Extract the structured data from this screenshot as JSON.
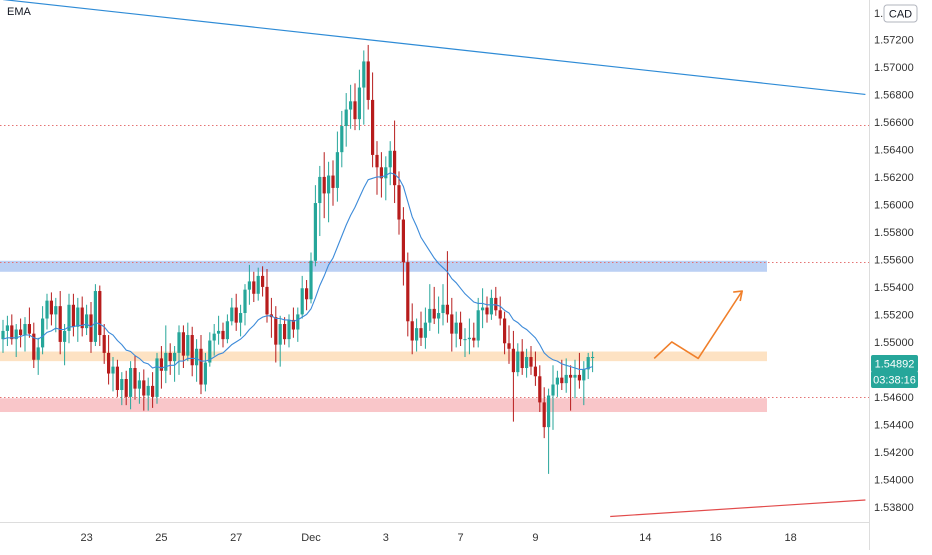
{
  "chart_data": {
    "type": "candlestick",
    "indicator_label": "EMA",
    "currency": "CAD",
    "price_badge": "1.54892",
    "countdown_badge": "03:38:16",
    "y_axis": {
      "ylim": [
        1.5369,
        1.57465
      ],
      "ticks": [
        "1.53800",
        "1.54000",
        "1.54200",
        "1.54400",
        "1.54600",
        "1.54800",
        "1.55000",
        "1.55200",
        "1.55400",
        "1.55600",
        "1.55800",
        "1.56000",
        "1.56200",
        "1.56400",
        "1.56600",
        "1.56800",
        "1.57000",
        "1.57200"
      ],
      "top_partial_tick": "1."
    },
    "x_axis": {
      "ticks": [
        {
          "label": "23",
          "index": 19
        },
        {
          "label": "25",
          "index": 36
        },
        {
          "label": "27",
          "index": 53
        },
        {
          "label": "Dec",
          "index": 70
        },
        {
          "label": "3",
          "index": 87
        },
        {
          "label": "7",
          "index": 104
        },
        {
          "label": "9",
          "index": 121
        },
        {
          "label": "14",
          "index": 146
        },
        {
          "label": "16",
          "index": 162
        },
        {
          "label": "18",
          "index": 179
        }
      ]
    },
    "candles": [
      [
        1.5502,
        1.5516,
        1.5492,
        1.5508
      ],
      [
        1.5508,
        1.5519,
        1.5497,
        1.5512
      ],
      [
        1.5512,
        1.552,
        1.5498,
        1.5502
      ],
      [
        1.5502,
        1.5513,
        1.5489,
        1.5509
      ],
      [
        1.5509,
        1.5517,
        1.5496,
        1.5505
      ],
      [
        1.5505,
        1.5518,
        1.5493,
        1.5513
      ],
      [
        1.5513,
        1.5525,
        1.5503,
        1.5506
      ],
      [
        1.5506,
        1.5514,
        1.5481,
        1.5487
      ],
      [
        1.5487,
        1.5503,
        1.5476,
        1.5496
      ],
      [
        1.5496,
        1.5526,
        1.5491,
        1.5517
      ],
      [
        1.5517,
        1.5535,
        1.5509,
        1.553
      ],
      [
        1.553,
        1.5536,
        1.5512,
        1.552
      ],
      [
        1.552,
        1.5532,
        1.5507,
        1.5526
      ],
      [
        1.5526,
        1.5537,
        1.5491,
        1.55
      ],
      [
        1.55,
        1.5513,
        1.5483,
        1.5508
      ],
      [
        1.5508,
        1.5535,
        1.5499,
        1.5527
      ],
      [
        1.5527,
        1.5535,
        1.5504,
        1.5511
      ],
      [
        1.5511,
        1.5532,
        1.55,
        1.5525
      ],
      [
        1.5525,
        1.5533,
        1.5504,
        1.551
      ],
      [
        1.551,
        1.5527,
        1.5505,
        1.552
      ],
      [
        1.552,
        1.5529,
        1.5492,
        1.55
      ],
      [
        1.55,
        1.5542,
        1.5497,
        1.5537
      ],
      [
        1.5537,
        1.5541,
        1.5497,
        1.5505
      ],
      [
        1.5505,
        1.5513,
        1.5484,
        1.5492
      ],
      [
        1.5492,
        1.5505,
        1.5469,
        1.5477
      ],
      [
        1.5477,
        1.5489,
        1.5464,
        1.5482
      ],
      [
        1.5482,
        1.5487,
        1.546,
        1.5465
      ],
      [
        1.5465,
        1.5478,
        1.5454,
        1.5473
      ],
      [
        1.5473,
        1.5479,
        1.5454,
        1.546
      ],
      [
        1.546,
        1.5486,
        1.5451,
        1.5481
      ],
      [
        1.5481,
        1.549,
        1.5458,
        1.5466
      ],
      [
        1.5466,
        1.5478,
        1.5455,
        1.5472
      ],
      [
        1.5472,
        1.548,
        1.545,
        1.5461
      ],
      [
        1.5461,
        1.5474,
        1.545,
        1.5468
      ],
      [
        1.5468,
        1.5478,
        1.5452,
        1.546
      ],
      [
        1.546,
        1.5492,
        1.5455,
        1.5488
      ],
      [
        1.5488,
        1.5497,
        1.5466,
        1.5479
      ],
      [
        1.5479,
        1.5512,
        1.547,
        1.5492
      ],
      [
        1.5492,
        1.5499,
        1.5476,
        1.5486
      ],
      [
        1.5486,
        1.5497,
        1.5471,
        1.5492
      ],
      [
        1.5492,
        1.5512,
        1.5476,
        1.5507
      ],
      [
        1.5507,
        1.5512,
        1.5481,
        1.549
      ],
      [
        1.549,
        1.5514,
        1.5486,
        1.5505
      ],
      [
        1.5505,
        1.5511,
        1.5475,
        1.5483
      ],
      [
        1.5483,
        1.5502,
        1.5471,
        1.5495
      ],
      [
        1.5495,
        1.5505,
        1.5462,
        1.5469
      ],
      [
        1.5469,
        1.5492,
        1.5464,
        1.5485
      ],
      [
        1.5485,
        1.5507,
        1.5482,
        1.5501
      ],
      [
        1.5501,
        1.5513,
        1.549,
        1.5506
      ],
      [
        1.5506,
        1.5519,
        1.5498,
        1.5508
      ],
      [
        1.5508,
        1.5514,
        1.5496,
        1.5502
      ],
      [
        1.5502,
        1.552,
        1.5499,
        1.5515
      ],
      [
        1.5515,
        1.5532,
        1.5512,
        1.5525
      ],
      [
        1.5525,
        1.5535,
        1.5508,
        1.5514
      ],
      [
        1.5514,
        1.5527,
        1.5504,
        1.5521
      ],
      [
        1.5521,
        1.5542,
        1.5512,
        1.5538
      ],
      [
        1.5538,
        1.5556,
        1.5527,
        1.5544
      ],
      [
        1.5544,
        1.5551,
        1.5529,
        1.5535
      ],
      [
        1.5535,
        1.5554,
        1.553,
        1.5548
      ],
      [
        1.5548,
        1.5555,
        1.5533,
        1.554
      ],
      [
        1.554,
        1.5553,
        1.5514,
        1.552
      ],
      [
        1.552,
        1.5532,
        1.5503,
        1.5518
      ],
      [
        1.5518,
        1.5526,
        1.5485,
        1.5498
      ],
      [
        1.5498,
        1.5519,
        1.5482,
        1.5513
      ],
      [
        1.5513,
        1.5518,
        1.5498,
        1.5502
      ],
      [
        1.5502,
        1.552,
        1.5496,
        1.5516
      ],
      [
        1.5516,
        1.5525,
        1.5503,
        1.5509
      ],
      [
        1.5509,
        1.5525,
        1.55,
        1.552
      ],
      [
        1.552,
        1.5548,
        1.5517,
        1.5539
      ],
      [
        1.5539,
        1.5545,
        1.5523,
        1.5531
      ],
      [
        1.5531,
        1.5565,
        1.5528,
        1.5559
      ],
      [
        1.5559,
        1.5614,
        1.5555,
        1.5601
      ],
      [
        1.5601,
        1.5628,
        1.5577,
        1.562
      ],
      [
        1.562,
        1.5638,
        1.559,
        1.5608
      ],
      [
        1.5608,
        1.5631,
        1.5587,
        1.5621
      ],
      [
        1.5621,
        1.5632,
        1.5599,
        1.5612
      ],
      [
        1.5612,
        1.5653,
        1.5602,
        1.5638
      ],
      [
        1.5638,
        1.5668,
        1.5627,
        1.5657
      ],
      [
        1.5657,
        1.5681,
        1.5642,
        1.5669
      ],
      [
        1.5669,
        1.5687,
        1.5655,
        1.5675
      ],
      [
        1.5675,
        1.5688,
        1.5654,
        1.5662
      ],
      [
        1.5662,
        1.5698,
        1.5654,
        1.5685
      ],
      [
        1.5685,
        1.5712,
        1.5658,
        1.5704
      ],
      [
        1.5704,
        1.5716,
        1.5669,
        1.5676
      ],
      [
        1.5676,
        1.5696,
        1.5627,
        1.5636
      ],
      [
        1.5636,
        1.5646,
        1.5607,
        1.5627
      ],
      [
        1.5627,
        1.5638,
        1.5605,
        1.5619
      ],
      [
        1.5619,
        1.5635,
        1.5603,
        1.5627
      ],
      [
        1.5627,
        1.5646,
        1.5614,
        1.5639
      ],
      [
        1.5639,
        1.5661,
        1.5601,
        1.5614
      ],
      [
        1.5614,
        1.5624,
        1.5578,
        1.5589
      ],
      [
        1.5589,
        1.5598,
        1.5541,
        1.5558
      ],
      [
        1.5558,
        1.5565,
        1.5504,
        1.5515
      ],
      [
        1.5515,
        1.5528,
        1.5491,
        1.5501
      ],
      [
        1.5501,
        1.5517,
        1.5493,
        1.551
      ],
      [
        1.551,
        1.5522,
        1.5497,
        1.5503
      ],
      [
        1.5503,
        1.5525,
        1.5495,
        1.5514
      ],
      [
        1.5514,
        1.5542,
        1.5508,
        1.5524
      ],
      [
        1.5524,
        1.554,
        1.5513,
        1.5517
      ],
      [
        1.5517,
        1.5533,
        1.5506,
        1.5521
      ],
      [
        1.5521,
        1.5542,
        1.5512,
        1.5527
      ],
      [
        1.5527,
        1.5566,
        1.5514,
        1.552
      ],
      [
        1.552,
        1.5532,
        1.5493,
        1.5506
      ],
      [
        1.5506,
        1.5522,
        1.5496,
        1.5514
      ],
      [
        1.5514,
        1.5522,
        1.5497,
        1.5502
      ],
      [
        1.5502,
        1.551,
        1.5489,
        1.5502
      ],
      [
        1.5502,
        1.5517,
        1.5491,
        1.5503
      ],
      [
        1.5503,
        1.5514,
        1.5496,
        1.5501
      ],
      [
        1.5501,
        1.5532,
        1.5496,
        1.5523
      ],
      [
        1.5523,
        1.5539,
        1.551,
        1.5525
      ],
      [
        1.5525,
        1.5533,
        1.5514,
        1.552
      ],
      [
        1.552,
        1.5538,
        1.5516,
        1.5532
      ],
      [
        1.5532,
        1.554,
        1.5519,
        1.5523
      ],
      [
        1.5523,
        1.5533,
        1.5512,
        1.5517
      ],
      [
        1.5517,
        1.5522,
        1.5491,
        1.5499
      ],
      [
        1.5499,
        1.5512,
        1.5484,
        1.5495
      ],
      [
        1.5495,
        1.5508,
        1.5442,
        1.5478
      ],
      [
        1.5478,
        1.5499,
        1.5475,
        1.5493
      ],
      [
        1.5493,
        1.5502,
        1.5476,
        1.5481
      ],
      [
        1.5481,
        1.5495,
        1.5474,
        1.5489
      ],
      [
        1.5489,
        1.5497,
        1.5476,
        1.5482
      ],
      [
        1.5482,
        1.5493,
        1.5468,
        1.5475
      ],
      [
        1.5475,
        1.5483,
        1.5449,
        1.5456
      ],
      [
        1.5456,
        1.5467,
        1.543,
        1.5438
      ],
      [
        1.5438,
        1.5466,
        1.5404,
        1.5461
      ],
      [
        1.5461,
        1.5483,
        1.5436,
        1.5469
      ],
      [
        1.5469,
        1.5479,
        1.546,
        1.5474
      ],
      [
        1.5474,
        1.5487,
        1.5465,
        1.547
      ],
      [
        1.547,
        1.5488,
        1.5463,
        1.5476
      ],
      [
        1.5476,
        1.5483,
        1.545,
        1.5474
      ],
      [
        1.5474,
        1.5487,
        1.5459,
        1.5476
      ],
      [
        1.5476,
        1.5492,
        1.5466,
        1.5472
      ],
      [
        1.5472,
        1.5486,
        1.5454,
        1.548
      ],
      [
        1.548,
        1.5492,
        1.5473,
        1.5489
      ],
      [
        1.5489,
        1.5493,
        1.5478,
        1.5489
      ]
    ],
    "ema": [
      1.5502,
      1.5503,
      1.5503,
      1.5503,
      1.5504,
      1.5505,
      1.5505,
      1.5503,
      1.5502,
      1.5504,
      1.5507,
      1.5508,
      1.551,
      1.5509,
      1.5509,
      1.5511,
      1.5511,
      1.5512,
      1.5512,
      1.5513,
      1.5511,
      1.5514,
      1.5513,
      1.5511,
      1.5507,
      1.5505,
      1.5501,
      1.5498,
      1.5494,
      1.5493,
      1.549,
      1.5488,
      1.5485,
      1.5484,
      1.5481,
      1.5482,
      1.5481,
      1.5482,
      1.5483,
      1.5483,
      1.5486,
      1.5486,
      1.5488,
      1.5488,
      1.5488,
      1.5486,
      1.5486,
      1.5487,
      1.5489,
      1.5491,
      1.5492,
      1.5495,
      1.5498,
      1.55,
      1.5502,
      1.5505,
      1.5509,
      1.5512,
      1.5516,
      1.5518,
      1.5519,
      1.5519,
      1.5517,
      1.5517,
      1.5516,
      1.5516,
      1.5515,
      1.5516,
      1.5518,
      1.552,
      1.5524,
      1.5532,
      1.5541,
      1.5548,
      1.5556,
      1.5561,
      1.5569,
      1.5577,
      1.5585,
      1.5592,
      1.5598,
      1.5605,
      1.5612,
      1.5618,
      1.5619,
      1.562,
      1.562,
      1.5621,
      1.5623,
      1.5622,
      1.5619,
      1.5613,
      1.5602,
      1.5591,
      1.5584,
      1.5576,
      1.5571,
      1.5566,
      1.5561,
      1.5557,
      1.5554,
      1.5551,
      1.5546,
      1.5543,
      1.5539,
      1.5535,
      1.5532,
      1.5529,
      1.5528,
      1.5528,
      1.5527,
      1.5527,
      1.5527,
      1.5526,
      1.5523,
      1.5521,
      1.5516,
      1.5514,
      1.5511,
      1.5509,
      1.5506,
      1.5503,
      1.5498,
      1.5492,
      1.5489,
      1.5487,
      1.5486,
      1.5484,
      1.5483,
      1.5482,
      1.5481,
      1.548,
      1.548,
      1.5481,
      1.5482
    ],
    "zones": [
      {
        "name": "blue-zone",
        "y_top": 1.5559,
        "y_bottom": 1.5551,
        "color": "#bbd0f4"
      },
      {
        "name": "orange-zone",
        "y_top": 1.5493,
        "y_bottom": 1.5486,
        "color": "#fde2c3"
      },
      {
        "name": "red-zone",
        "y_top": 1.5459,
        "y_bottom": 1.5449,
        "color": "#f9c6c9"
      }
    ],
    "dotted_levels": [
      1.5658,
      1.5558,
      1.546
    ],
    "trendlines": [
      {
        "name": "upper-trendline",
        "from": [
          0,
          1.5749
        ],
        "to": [
          196,
          1.568
        ],
        "color": "#2e8bd6"
      },
      {
        "name": "lower-trendline",
        "from": [
          138,
          1.5373
        ],
        "to": [
          196,
          1.5385
        ],
        "color": "#e24b4b"
      }
    ],
    "projection": {
      "color": "#f07f2a",
      "points": [
        [
          148,
          1.5488
        ],
        [
          152,
          1.55
        ],
        [
          158,
          1.5488
        ],
        [
          168,
          1.5537
        ],
        [
          169,
          1.553
        ],
        [
          170,
          1.5536
        ],
        [
          168,
          1.5534
        ]
      ]
    },
    "colors": {
      "up": "#26a69a",
      "down": "#b71c1c",
      "ema": "#3d8bd9",
      "dotted": "#e57373",
      "badge_price": "#26a69a",
      "badge_time": "#26a69a",
      "axis_text": "#333333"
    }
  }
}
